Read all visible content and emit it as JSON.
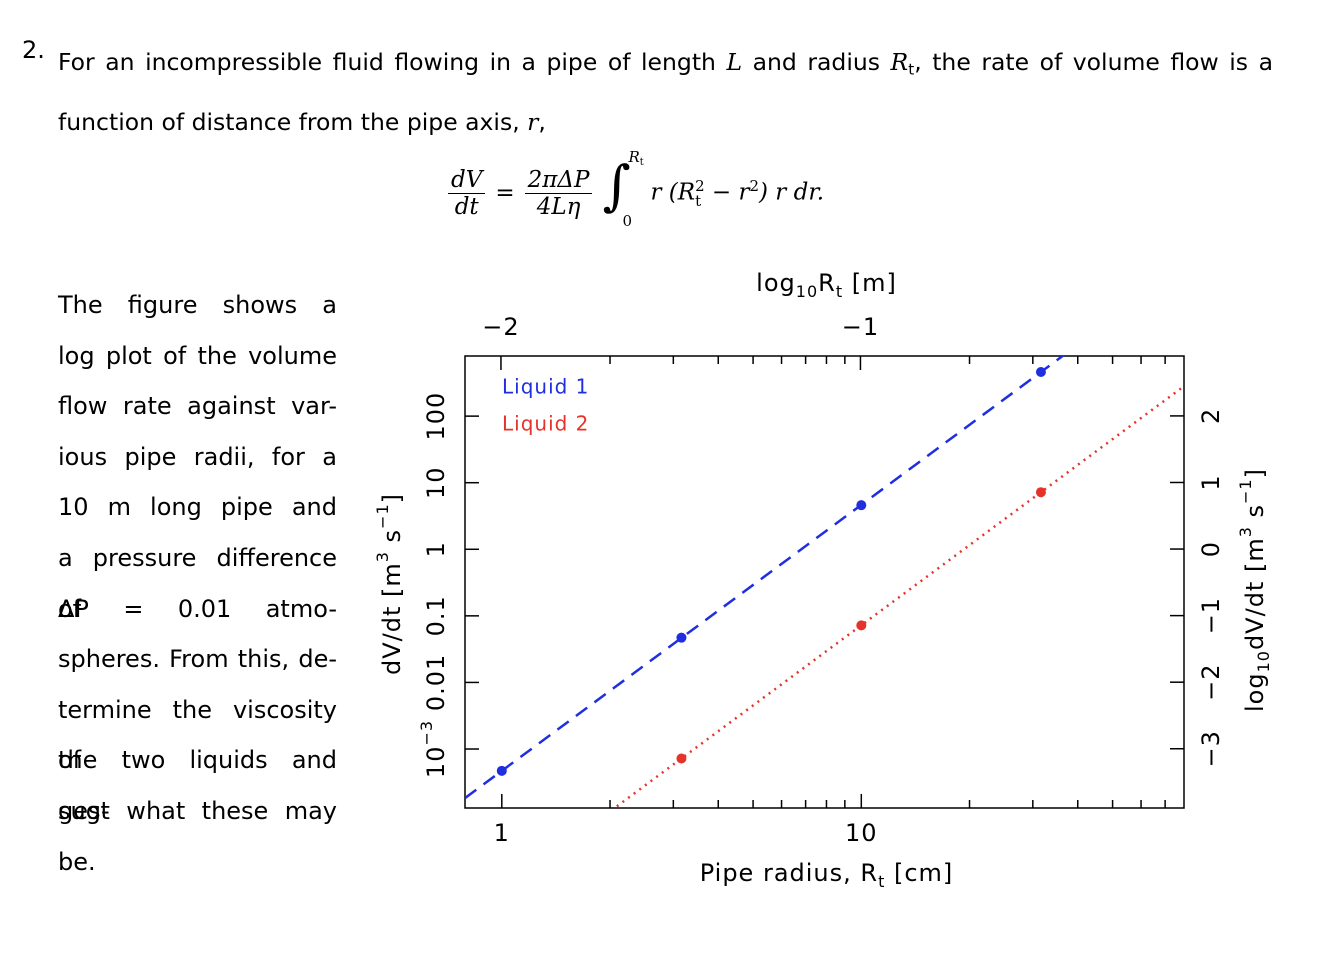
{
  "number": "2.",
  "intro": [
    "For an incompressible fluid flowing in a pipe of length ",
    "L",
    " and radius ",
    "R",
    "t",
    ", the rate of volume flow is a function of distance from the pipe axis, ",
    "r",
    ","
  ],
  "equation": {
    "lhs_num": "dV",
    "lhs_den": "dt",
    "eq": "=",
    "rhs_num": "2πΔP",
    "rhs_den": "4Lη",
    "integral": "∫",
    "upper": "R",
    "upper_sub": "t",
    "lower": "0",
    "body": [
      "r (R",
      "2",
      "t",
      " − r",
      "2",
      ") r dr."
    ]
  },
  "side_text": [
    "The figure shows a",
    "log plot of the volume",
    "flow rate against var-",
    "ious pipe radii, for a",
    "10 m long pipe and",
    "a pressure difference of",
    "ΔP = 0.01 atmo-",
    "spheres. From this, de-",
    "termine the viscosity of",
    "the two liquids and sug-",
    "gest what these may",
    "be."
  ],
  "chart_data": {
    "type": "scatter",
    "xlabel": [
      "Pipe radius, R",
      "t",
      " [cm]"
    ],
    "ylabel": [
      "dV/dt [m",
      "3",
      " s",
      "−1",
      "]"
    ],
    "x2label": [
      "log",
      "10",
      "R",
      "t",
      " [m]"
    ],
    "y2label": [
      "log",
      "10",
      "dV/dt [m",
      "3",
      " s",
      "−1",
      "]"
    ],
    "log_x": true,
    "log_y": true,
    "xlim": [
      0.79,
      79
    ],
    "ylim": [
      0.00013,
      800
    ],
    "xticks": [
      1,
      10
    ],
    "xminorticks": [
      2,
      3,
      4,
      5,
      6,
      7,
      8,
      9,
      20,
      30,
      40,
      50,
      60,
      70
    ],
    "yticks": [
      {
        "value": 0.001,
        "label": "10",
        "exponent": "−3"
      },
      0.01,
      0.1,
      1,
      10,
      100
    ],
    "x2lim": [
      -2.1,
      -0.1
    ],
    "x2ticks": [
      {
        "value": -2,
        "label": "−2"
      },
      {
        "value": -1,
        "label": "−1"
      }
    ],
    "y2lim": [
      -3.89,
      2.9
    ],
    "y2ticks": [
      {
        "value": -3,
        "label": "−3"
      },
      {
        "value": -2,
        "label": "−2"
      },
      {
        "value": -1,
        "label": "−1"
      },
      0,
      1,
      2
    ],
    "legend": "upper left",
    "series": [
      {
        "name": "Liquid 1",
        "color": "#1f2fe0",
        "linestyle": "dashed",
        "x": [
          1,
          3.16,
          10,
          31.6
        ],
        "values": [
          0.00047,
          0.047,
          4.6,
          460
        ]
      },
      {
        "name": "Liquid 2",
        "color": "#e5332a",
        "linestyle": "dotted",
        "x": [
          3.16,
          10,
          31.6
        ],
        "values": [
          0.00072,
          0.072,
          7.2
        ]
      }
    ]
  }
}
